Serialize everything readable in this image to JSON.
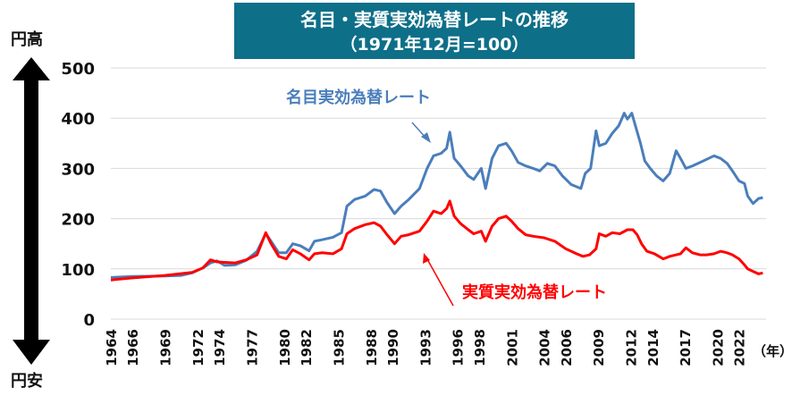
{
  "colors": {
    "nominal": "#4a7ebb",
    "real": "#ff0000",
    "title_bg": "#0e6f88",
    "grid": "#d9d9d9",
    "axis": "#111111"
  },
  "labels": {
    "top_arrow": "円高",
    "bottom_arrow": "円安"
  },
  "chart_data": {
    "type": "line",
    "title": "名目・実質実効為替レートの推移",
    "subtitle": "（1971年12月=100）",
    "xlabel": "（年）",
    "ylabel": "",
    "ylim": [
      0,
      500
    ],
    "yticks": [
      0,
      100,
      200,
      300,
      400,
      500
    ],
    "xlim": [
      1964,
      2024.5
    ],
    "xticks": [
      1964,
      1966,
      1969,
      1972,
      1974,
      1977,
      1980,
      1982,
      1985,
      1988,
      1990,
      1993,
      1996,
      1998,
      2001,
      2004,
      2006,
      2009,
      2012,
      2014,
      2017,
      2020,
      2022
    ],
    "grid": true,
    "legend": "inline annotations",
    "series": [
      {
        "name": "名目実効為替レート",
        "color": "#4a7ebb",
        "x": [
          1964,
          1966,
          1969,
          1970.5,
          1971.5,
          1972.5,
          1973.2,
          1973.8,
          1974.5,
          1975.5,
          1976.5,
          1977.5,
          1978.3,
          1978.8,
          1979.5,
          1980.2,
          1980.8,
          1981.5,
          1982.3,
          1982.8,
          1983.5,
          1984.5,
          1985.3,
          1985.8,
          1986.5,
          1987.5,
          1988.3,
          1988.9,
          1989.5,
          1990.2,
          1990.8,
          1991.5,
          1992.5,
          1993.2,
          1993.8,
          1994.5,
          1995.0,
          1995.3,
          1995.7,
          1996.3,
          1997.0,
          1997.5,
          1998.2,
          1998.6,
          1999.2,
          1999.8,
          2000.5,
          2001.0,
          2001.6,
          2002.3,
          2003.0,
          2003.6,
          2004.3,
          2005.0,
          2005.7,
          2006.5,
          2007.4,
          2007.8,
          2008.3,
          2008.8,
          2009.1,
          2009.7,
          2010.3,
          2010.9,
          2011.4,
          2011.7,
          2012.1,
          2012.5,
          2012.9,
          2013.3,
          2013.8,
          2014.4,
          2015.0,
          2015.6,
          2016.2,
          2016.6,
          2017.1,
          2017.7,
          2018.4,
          2019.0,
          2019.7,
          2020.3,
          2020.9,
          2021.4,
          2022.0,
          2022.5,
          2022.8,
          2023.3,
          2023.8,
          2024.2
        ],
        "values": [
          83,
          85,
          86,
          87,
          92,
          102,
          112,
          116,
          107,
          108,
          117,
          135,
          170,
          155,
          132,
          132,
          150,
          146,
          136,
          155,
          158,
          163,
          172,
          225,
          238,
          245,
          258,
          255,
          232,
          210,
          225,
          238,
          260,
          300,
          325,
          330,
          340,
          372,
          320,
          305,
          285,
          278,
          300,
          260,
          320,
          345,
          350,
          335,
          312,
          305,
          300,
          295,
          310,
          305,
          285,
          268,
          260,
          290,
          300,
          375,
          345,
          350,
          370,
          385,
          410,
          398,
          410,
          380,
          350,
          315,
          300,
          285,
          275,
          290,
          335,
          320,
          300,
          305,
          312,
          318,
          325,
          320,
          310,
          295,
          275,
          270,
          245,
          230,
          240,
          242
        ]
      },
      {
        "name": "実質実効為替レート",
        "color": "#ff0000",
        "x": [
          1964,
          1966,
          1969,
          1971.5,
          1972.5,
          1973.2,
          1973.8,
          1974.5,
          1975.5,
          1976.5,
          1977.5,
          1978.3,
          1978.8,
          1979.5,
          1980.2,
          1980.8,
          1981.5,
          1982.3,
          1982.8,
          1983.5,
          1984.5,
          1985.3,
          1985.8,
          1986.5,
          1987.5,
          1988.3,
          1988.9,
          1989.5,
          1990.2,
          1990.8,
          1991.5,
          1992.5,
          1993.2,
          1993.8,
          1994.5,
          1995.0,
          1995.3,
          1995.7,
          1996.3,
          1997.0,
          1997.5,
          1998.2,
          1998.6,
          1999.2,
          1999.8,
          2000.5,
          2001.0,
          2001.6,
          2002.3,
          2003.0,
          2004.0,
          2005.0,
          2006.0,
          2007.0,
          2007.6,
          2008.2,
          2008.8,
          2009.1,
          2009.7,
          2010.3,
          2011.0,
          2011.7,
          2012.2,
          2012.6,
          2013.0,
          2013.5,
          2014.2,
          2015.0,
          2015.6,
          2016.2,
          2016.6,
          2017.1,
          2017.7,
          2018.4,
          2019.0,
          2019.7,
          2020.3,
          2020.9,
          2021.4,
          2022.0,
          2022.5,
          2022.8,
          2023.3,
          2023.8,
          2024.2
        ],
        "values": [
          78,
          82,
          87,
          93,
          102,
          118,
          114,
          113,
          112,
          118,
          128,
          172,
          150,
          125,
          120,
          138,
          130,
          118,
          130,
          132,
          130,
          140,
          170,
          180,
          188,
          192,
          185,
          168,
          150,
          165,
          168,
          175,
          195,
          215,
          210,
          220,
          235,
          205,
          190,
          178,
          170,
          175,
          155,
          185,
          200,
          205,
          195,
          180,
          168,
          165,
          162,
          155,
          140,
          130,
          125,
          128,
          140,
          170,
          165,
          172,
          170,
          178,
          178,
          168,
          150,
          135,
          130,
          120,
          125,
          128,
          130,
          142,
          132,
          128,
          128,
          130,
          135,
          132,
          128,
          120,
          108,
          100,
          95,
          90,
          92
        ]
      }
    ]
  }
}
